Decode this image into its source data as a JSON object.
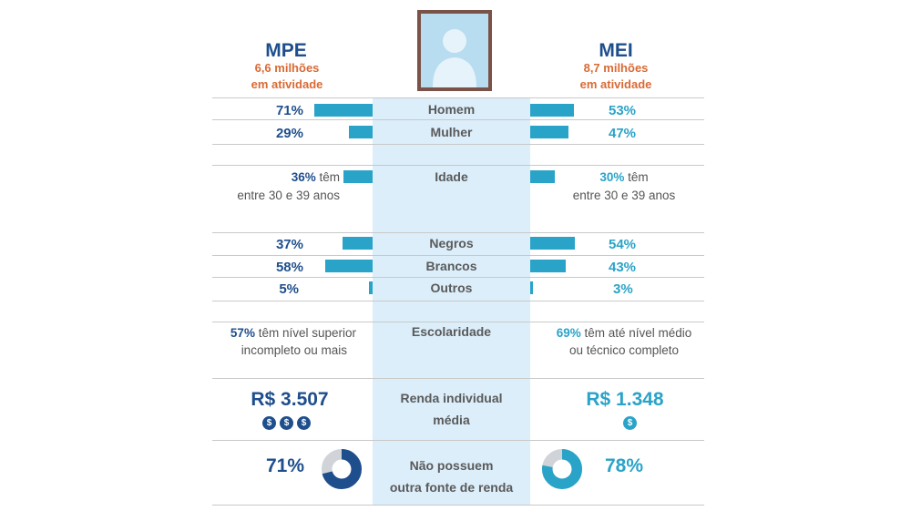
{
  "colors": {
    "mpe": "#1e4e8c",
    "mei": "#2aa3c8",
    "accent": "#d96a35",
    "band": "#dbeefa",
    "donut_track": "#d0d4d8"
  },
  "header": {
    "left_title": "MPE",
    "left_sub1": "6,6 milhões",
    "left_sub2": "em atividade",
    "right_title": "MEI",
    "right_sub1": "8,7 milhões",
    "right_sub2": "em atividade",
    "avatar_icon": "person-portrait-icon"
  },
  "rows": {
    "homem": {
      "label": "Homem",
      "mpe_pct": "71%",
      "mei_pct": "53%"
    },
    "mulher": {
      "label": "Mulher",
      "mpe_pct": "29%",
      "mei_pct": "47%"
    },
    "idade": {
      "label": "Idade",
      "mpe_pct": "36%",
      "mpe_text1": " têm",
      "mpe_text2": "entre 30 e 39 anos",
      "mei_pct": "30%",
      "mei_text1": " têm",
      "mei_text2": "entre 30 e 39 anos"
    },
    "negros": {
      "label": "Negros",
      "mpe_pct": "37%",
      "mei_pct": "54%"
    },
    "brancos": {
      "label": "Brancos",
      "mpe_pct": "58%",
      "mei_pct": "43%"
    },
    "outros": {
      "label": "Outros",
      "mpe_pct": "5%",
      "mei_pct": "3%"
    },
    "escolaridade": {
      "label": "Escolaridade",
      "mpe_pct": "57%",
      "mpe_text1": " têm nível superior",
      "mpe_text2": "incompleto ou mais",
      "mei_pct": "69%",
      "mei_text1": " têm até nível médio",
      "mei_text2": "ou técnico completo"
    },
    "renda": {
      "label1": "Renda individual",
      "label2": "média",
      "mpe_value": "R$ 3.507",
      "mei_value": "R$ 1.348",
      "mpe_coins": 3,
      "mei_coins": 1,
      "coin_symbol": "$"
    },
    "fonte": {
      "label1": "Não possuem",
      "label2": "outra fonte de renda",
      "mpe_pct": "71%",
      "mei_pct": "78%"
    }
  },
  "chart_data": {
    "type": "bar",
    "title": "",
    "categories": [
      "Homem",
      "Mulher",
      "Idade",
      "Negros",
      "Brancos",
      "Outros",
      "Não possuem outra fonte de renda"
    ],
    "series": [
      {
        "name": "MPE",
        "values": [
          71,
          29,
          36,
          37,
          58,
          5,
          71
        ]
      },
      {
        "name": "MEI",
        "values": [
          53,
          47,
          30,
          54,
          43,
          3,
          78
        ]
      }
    ],
    "text_only": {
      "Escolaridade": {
        "MPE": 57,
        "MEI": 69
      },
      "Renda individual média": {
        "MPE": "R$ 3.507",
        "MEI": "R$ 1.348"
      }
    },
    "units": "%",
    "xlabel": "",
    "ylabel": "",
    "legend": "none",
    "grid": false
  }
}
